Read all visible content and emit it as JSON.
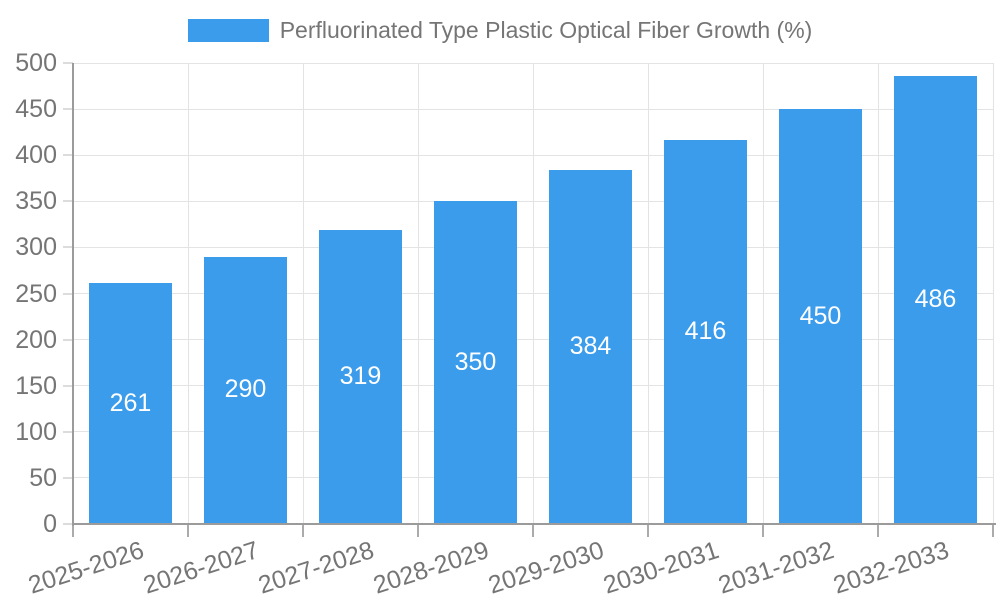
{
  "legend": {
    "label": "Perfluorinated Type Plastic Optical Fiber Growth (%)"
  },
  "chart_data": {
    "type": "bar",
    "title": "Perfluorinated Type Plastic Optical Fiber Growth (%)",
    "series": [
      {
        "name": "Perfluorinated Type Plastic Optical Fiber Growth (%)",
        "values": [
          261,
          290,
          319,
          350,
          384,
          416,
          450,
          486
        ]
      }
    ],
    "categories": [
      "2025-2026",
      "2026-2027",
      "2027-2028",
      "2028-2029",
      "2029-2030",
      "2030-2031",
      "2031-2032",
      "2032-2033"
    ],
    "values": [
      261,
      290,
      319,
      350,
      384,
      416,
      450,
      486
    ],
    "value_labels_shown": true,
    "xlabel": "",
    "ylabel": "",
    "ylim": [
      0,
      500
    ],
    "ytick_step": 50,
    "ytick_labels": [
      "0",
      "50",
      "100",
      "150",
      "200",
      "250",
      "300",
      "350",
      "400",
      "450",
      "500"
    ],
    "grid": "both",
    "legend_position": "top-center",
    "colors": {
      "bar": "#3b9cec",
      "value_label": "#ffffff",
      "axis_text": "#757575",
      "grid_line": "#e3e3e3",
      "axis_line": "#9b9b9b",
      "y_tick": "#dcdcdc",
      "x_tick": "#ababab",
      "background": "#ffffff"
    }
  }
}
